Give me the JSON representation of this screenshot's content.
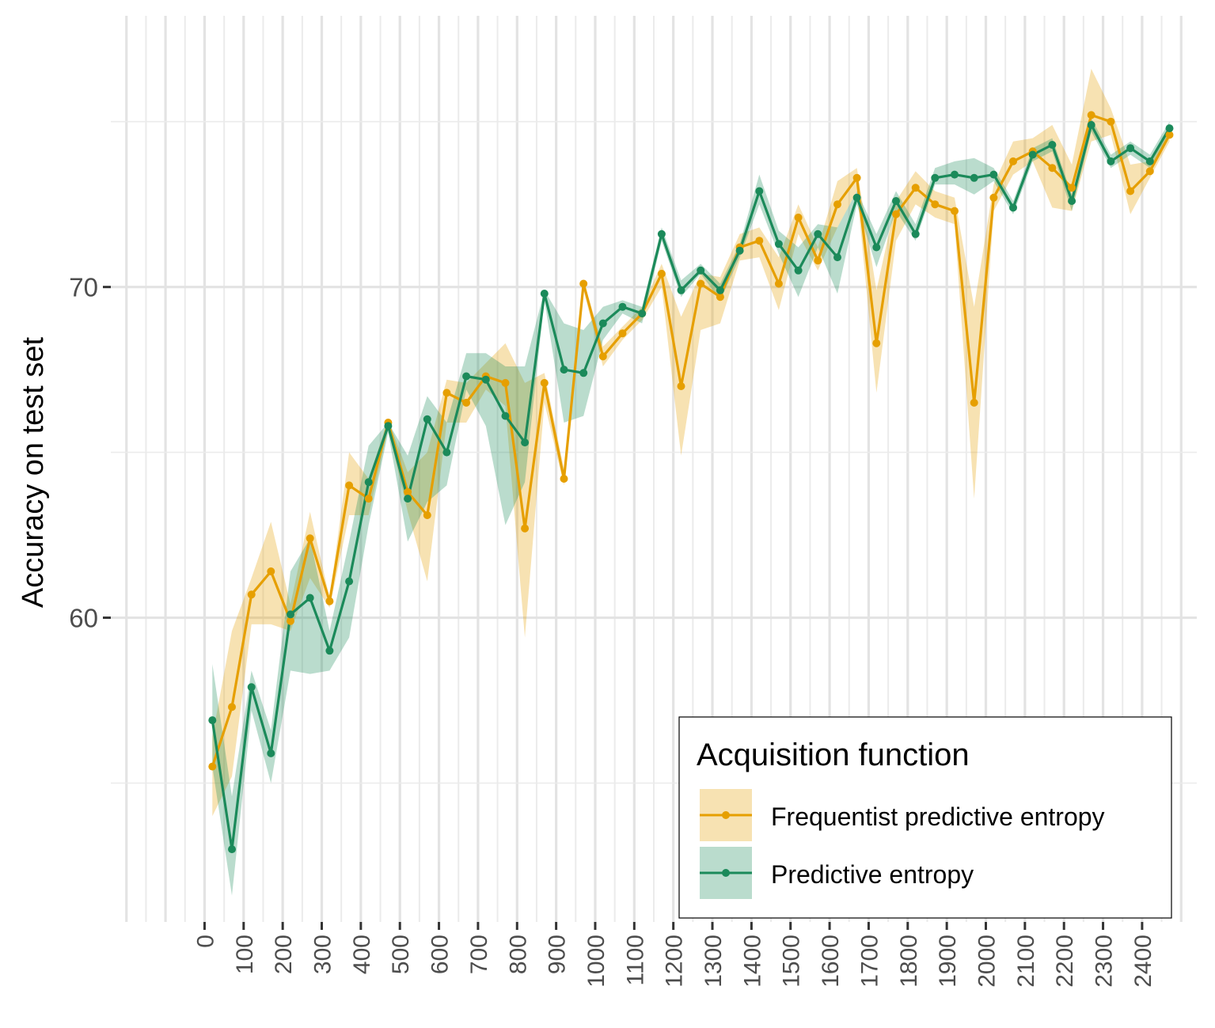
{
  "chart_data": {
    "type": "line",
    "title": "",
    "xlabel": "",
    "ylabel": "Accuracy on test set",
    "xlim": [
      -240,
      2540
    ],
    "ylim": [
      50.8,
      78.2
    ],
    "x_ticks": [
      0,
      100,
      200,
      300,
      400,
      500,
      600,
      700,
      800,
      900,
      1000,
      1100,
      1200,
      1300,
      1400,
      1500,
      1600,
      1700,
      1800,
      1900,
      2000,
      2100,
      2200,
      2300,
      2400
    ],
    "y_ticks": [
      60,
      70
    ],
    "grid": true,
    "legend": {
      "title": "Acquisition function",
      "position": "bottom-right"
    },
    "x": [
      20,
      70,
      120,
      170,
      220,
      270,
      320,
      370,
      420,
      470,
      520,
      570,
      620,
      670,
      720,
      770,
      820,
      870,
      920,
      970,
      1020,
      1070,
      1120,
      1170,
      1220,
      1270,
      1320,
      1370,
      1420,
      1470,
      1520,
      1570,
      1620,
      1670,
      1720,
      1770,
      1820,
      1870,
      1920,
      1970,
      2020,
      2070,
      2120,
      2170,
      2220,
      2270,
      2320,
      2370,
      2420,
      2470
    ],
    "series": [
      {
        "name": "Frequentist predictive entropy",
        "color": "#E69F00",
        "values": [
          55.5,
          57.3,
          60.7,
          61.4,
          59.9,
          62.4,
          60.5,
          64.0,
          63.6,
          65.9,
          63.8,
          63.1,
          66.8,
          66.5,
          67.3,
          67.1,
          62.7,
          67.1,
          64.2,
          70.1,
          67.9,
          68.6,
          69.2,
          70.4,
          67.0,
          70.1,
          69.7,
          71.2,
          71.4,
          70.1,
          72.1,
          70.8,
          72.5,
          73.3,
          68.3,
          72.2,
          73.0,
          72.5,
          72.3,
          66.5,
          72.7,
          73.8,
          74.1,
          73.6,
          73.0,
          75.2,
          75.0,
          72.9,
          73.5,
          74.6
        ],
        "lower": [
          54.0,
          55.2,
          59.8,
          59.8,
          59.6,
          61.2,
          60.3,
          63.1,
          63.1,
          65.7,
          63.2,
          61.1,
          65.9,
          65.9,
          66.9,
          66.4,
          59.4,
          66.5,
          64.0,
          69.9,
          67.6,
          68.4,
          69.0,
          70.0,
          64.9,
          68.7,
          68.9,
          70.8,
          70.9,
          69.3,
          71.6,
          70.5,
          71.8,
          72.9,
          66.8,
          71.4,
          72.5,
          72.1,
          71.9,
          63.6,
          72.3,
          73.4,
          73.8,
          72.4,
          72.3,
          74.4,
          74.6,
          72.2,
          73.3,
          74.4
        ],
        "upper": [
          56.4,
          59.6,
          61.2,
          62.9,
          60.4,
          63.2,
          60.6,
          65.0,
          64.2,
          66.0,
          64.4,
          65.0,
          67.2,
          67.1,
          67.7,
          68.3,
          67.1,
          67.4,
          64.5,
          70.2,
          68.2,
          68.8,
          69.4,
          70.7,
          69.1,
          70.4,
          70.3,
          71.6,
          71.8,
          70.9,
          72.5,
          71.2,
          73.2,
          73.6,
          69.9,
          72.6,
          73.5,
          72.9,
          72.7,
          69.4,
          73.1,
          74.4,
          74.5,
          74.9,
          73.7,
          76.6,
          75.4,
          73.7,
          73.8,
          74.9
        ]
      },
      {
        "name": "Predictive entropy",
        "color": "#1B8A5A",
        "values": [
          56.9,
          53.0,
          57.9,
          55.9,
          60.1,
          60.6,
          59.0,
          61.1,
          64.1,
          65.8,
          63.6,
          66.0,
          65.0,
          67.3,
          67.2,
          66.1,
          65.3,
          69.8,
          67.5,
          67.4,
          68.9,
          69.4,
          69.2,
          71.6,
          69.9,
          70.5,
          69.9,
          71.1,
          72.9,
          71.3,
          70.5,
          71.6,
          70.9,
          72.7,
          71.2,
          72.6,
          71.6,
          73.3,
          73.4,
          73.3,
          73.4,
          72.4,
          74.0,
          74.3,
          72.6,
          74.9,
          73.8,
          74.2,
          73.8,
          74.8
        ],
        "lower": [
          55.5,
          51.6,
          57.2,
          55.0,
          58.4,
          58.3,
          58.4,
          59.4,
          62.8,
          65.6,
          62.3,
          63.5,
          64.0,
          66.9,
          65.8,
          62.8,
          64.1,
          69.6,
          65.9,
          66.1,
          68.4,
          69.2,
          68.9,
          71.4,
          69.7,
          70.4,
          69.6,
          70.9,
          72.5,
          71.0,
          69.7,
          71.2,
          69.8,
          72.5,
          70.6,
          72.3,
          71.4,
          73.1,
          73.1,
          72.8,
          73.2,
          72.2,
          73.8,
          74.1,
          72.3,
          74.7,
          73.6,
          74.0,
          73.6,
          74.6
        ],
        "upper": [
          58.6,
          54.6,
          58.4,
          56.6,
          61.4,
          62.4,
          59.6,
          62.3,
          65.2,
          65.9,
          64.9,
          66.7,
          65.9,
          68.0,
          68.0,
          67.6,
          67.6,
          69.9,
          68.9,
          68.7,
          69.4,
          69.6,
          69.4,
          71.8,
          70.2,
          70.7,
          70.1,
          71.3,
          73.4,
          71.7,
          71.2,
          71.9,
          71.8,
          72.9,
          71.6,
          72.9,
          71.9,
          73.6,
          73.8,
          73.9,
          73.6,
          72.6,
          74.2,
          74.5,
          72.8,
          75.1,
          74.0,
          74.4,
          74.0,
          75.0
        ]
      }
    ]
  }
}
